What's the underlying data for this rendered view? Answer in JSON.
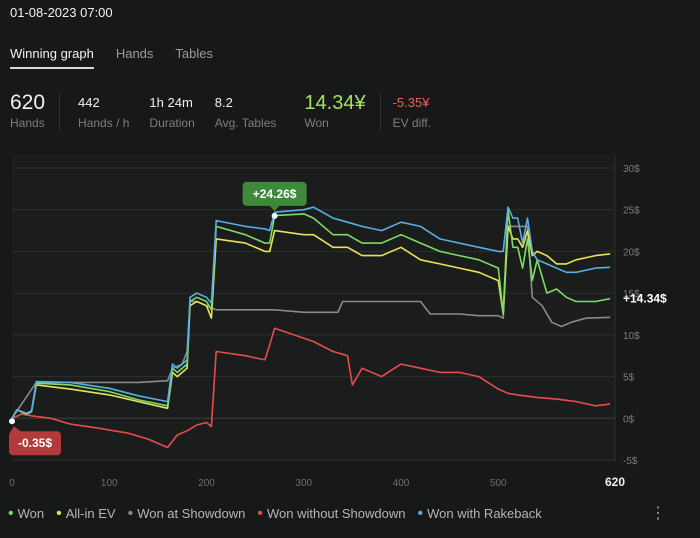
{
  "header": {
    "title": "01-08-2023 07:00"
  },
  "tabs": [
    {
      "label": "Winning graph",
      "active": true
    },
    {
      "label": "Hands"
    },
    {
      "label": "Tables"
    }
  ],
  "stats": {
    "hands": {
      "value": "620",
      "label": "Hands"
    },
    "hands_per_h": {
      "value": "442",
      "label": "Hands / h"
    },
    "duration": {
      "value": "1h 24m",
      "label": "Duration"
    },
    "avg_tables": {
      "value": "8.2",
      "label": "Avg. Tables"
    },
    "won": {
      "value": "14.34¥",
      "label": "Won"
    },
    "ev_diff": {
      "value": "-5.35¥",
      "label": "EV diff."
    }
  },
  "chart_data": {
    "type": "line",
    "xlim": [
      0,
      620
    ],
    "ylim": [
      -5,
      30
    ],
    "x_ticks": [
      "0",
      "100",
      "200",
      "300",
      "400",
      "500",
      "620"
    ],
    "y_ticks": [
      "30$",
      "25$",
      "20$",
      "15$",
      "10$",
      "5$",
      "0$",
      "-5$"
    ],
    "y_tick_values": [
      30,
      25,
      20,
      15,
      10,
      5,
      0,
      -5
    ],
    "annotations": {
      "max": {
        "label": "+24.26$",
        "x": 270,
        "y": 24.26
      },
      "min": {
        "label": "-0.35$",
        "x": 0,
        "y": -0.35
      },
      "final": {
        "label": "+14.34$"
      }
    },
    "series": [
      {
        "name": "Won",
        "color": "#7ddc63",
        "points": [
          [
            0,
            0
          ],
          [
            5,
            1
          ],
          [
            15,
            0.5
          ],
          [
            20,
            0.8
          ],
          [
            25,
            4.2
          ],
          [
            60,
            4
          ],
          [
            100,
            3.2
          ],
          [
            130,
            2.2
          ],
          [
            160,
            1.5
          ],
          [
            165,
            6
          ],
          [
            170,
            5.5
          ],
          [
            180,
            6.5
          ],
          [
            183,
            14
          ],
          [
            190,
            14.5
          ],
          [
            200,
            14
          ],
          [
            205,
            13
          ],
          [
            210,
            23
          ],
          [
            240,
            22
          ],
          [
            260,
            21
          ],
          [
            265,
            21
          ],
          [
            270,
            24.3
          ],
          [
            300,
            24.5
          ],
          [
            310,
            24
          ],
          [
            330,
            22
          ],
          [
            345,
            22
          ],
          [
            360,
            21
          ],
          [
            380,
            21
          ],
          [
            400,
            22
          ],
          [
            420,
            21
          ],
          [
            440,
            20
          ],
          [
            460,
            19.5
          ],
          [
            480,
            19
          ],
          [
            500,
            18
          ],
          [
            505,
            12.5
          ],
          [
            510,
            25
          ],
          [
            515,
            20.5
          ],
          [
            520,
            20.5
          ],
          [
            525,
            18
          ],
          [
            530,
            21.5
          ],
          [
            535,
            16.5
          ],
          [
            540,
            19
          ],
          [
            550,
            15
          ],
          [
            560,
            15.5
          ],
          [
            570,
            14.5
          ],
          [
            580,
            14
          ],
          [
            600,
            14
          ],
          [
            615,
            14.34
          ]
        ]
      },
      {
        "name": "All-in EV",
        "color": "#ebe356",
        "points": [
          [
            0,
            0
          ],
          [
            5,
            1
          ],
          [
            15,
            0.5
          ],
          [
            20,
            0.8
          ],
          [
            25,
            4
          ],
          [
            60,
            3.5
          ],
          [
            100,
            2.8
          ],
          [
            130,
            2
          ],
          [
            160,
            1.2
          ],
          [
            165,
            5.5
          ],
          [
            170,
            5
          ],
          [
            180,
            6
          ],
          [
            183,
            13.5
          ],
          [
            190,
            14
          ],
          [
            200,
            13.5
          ],
          [
            205,
            12
          ],
          [
            210,
            21.5
          ],
          [
            240,
            21
          ],
          [
            260,
            20
          ],
          [
            265,
            20
          ],
          [
            270,
            22.5
          ],
          [
            300,
            22
          ],
          [
            310,
            22
          ],
          [
            330,
            20.5
          ],
          [
            345,
            20.5
          ],
          [
            360,
            19.5
          ],
          [
            380,
            19.5
          ],
          [
            400,
            20.5
          ],
          [
            420,
            19
          ],
          [
            440,
            18.5
          ],
          [
            460,
            18
          ],
          [
            480,
            17.5
          ],
          [
            500,
            16.5
          ],
          [
            505,
            12.5
          ],
          [
            510,
            23
          ],
          [
            515,
            21.5
          ],
          [
            520,
            21.5
          ],
          [
            525,
            20.5
          ],
          [
            530,
            22.5
          ],
          [
            535,
            19.5
          ],
          [
            540,
            20
          ],
          [
            550,
            19.5
          ],
          [
            560,
            18.5
          ],
          [
            570,
            18.5
          ],
          [
            580,
            19
          ],
          [
            600,
            19.5
          ],
          [
            615,
            19.7
          ]
        ]
      },
      {
        "name": "Won at Showdown",
        "color": "#8a8a8a",
        "points": [
          [
            0,
            0
          ],
          [
            25,
            4.3
          ],
          [
            100,
            4.3
          ],
          [
            130,
            4.3
          ],
          [
            160,
            4.5
          ],
          [
            165,
            6
          ],
          [
            175,
            6.5
          ],
          [
            180,
            8
          ],
          [
            183,
            14
          ],
          [
            190,
            14
          ],
          [
            200,
            13.5
          ],
          [
            210,
            13
          ],
          [
            240,
            13
          ],
          [
            260,
            13
          ],
          [
            270,
            13
          ],
          [
            300,
            12.7
          ],
          [
            320,
            12.7
          ],
          [
            335,
            12.7
          ],
          [
            340,
            14
          ],
          [
            380,
            14
          ],
          [
            420,
            14
          ],
          [
            430,
            12.5
          ],
          [
            460,
            12.5
          ],
          [
            480,
            12.3
          ],
          [
            500,
            12.3
          ],
          [
            505,
            12
          ],
          [
            510,
            23
          ],
          [
            515,
            23
          ],
          [
            530,
            23
          ],
          [
            535,
            14.5
          ],
          [
            545,
            13.5
          ],
          [
            555,
            11.5
          ],
          [
            565,
            11
          ],
          [
            575,
            11.5
          ],
          [
            590,
            12
          ],
          [
            615,
            12.1
          ]
        ]
      },
      {
        "name": "Won without Showdown",
        "color": "#e64c4c",
        "points": [
          [
            0,
            0
          ],
          [
            10,
            0.5
          ],
          [
            20,
            0.3
          ],
          [
            40,
            0
          ],
          [
            60,
            -0.7
          ],
          [
            90,
            -1.2
          ],
          [
            120,
            -1.8
          ],
          [
            140,
            -2.5
          ],
          [
            160,
            -3.5
          ],
          [
            170,
            -2
          ],
          [
            180,
            -1.5
          ],
          [
            190,
            -0.8
          ],
          [
            200,
            -0.5
          ],
          [
            205,
            -1
          ],
          [
            210,
            8
          ],
          [
            240,
            7.5
          ],
          [
            260,
            7
          ],
          [
            265,
            8.8
          ],
          [
            270,
            10.8
          ],
          [
            290,
            10
          ],
          [
            310,
            9.2
          ],
          [
            330,
            8
          ],
          [
            345,
            7.5
          ],
          [
            350,
            4
          ],
          [
            360,
            6
          ],
          [
            380,
            5
          ],
          [
            400,
            6.5
          ],
          [
            420,
            6
          ],
          [
            440,
            5.5
          ],
          [
            460,
            5.5
          ],
          [
            480,
            5
          ],
          [
            500,
            3.5
          ],
          [
            510,
            3
          ],
          [
            520,
            2.8
          ],
          [
            540,
            2.5
          ],
          [
            560,
            2.3
          ],
          [
            580,
            2
          ],
          [
            600,
            1.5
          ],
          [
            615,
            1.7
          ]
        ]
      },
      {
        "name": "Won with Rakeback",
        "color": "#59aee8",
        "points": [
          [
            0,
            0
          ],
          [
            5,
            1
          ],
          [
            15,
            0.6
          ],
          [
            20,
            0.9
          ],
          [
            25,
            4.4
          ],
          [
            60,
            4.3
          ],
          [
            100,
            3.6
          ],
          [
            130,
            2.7
          ],
          [
            160,
            2
          ],
          [
            165,
            6.5
          ],
          [
            170,
            6
          ],
          [
            180,
            7
          ],
          [
            183,
            14.5
          ],
          [
            190,
            15
          ],
          [
            200,
            14.5
          ],
          [
            205,
            13.8
          ],
          [
            210,
            23.7
          ],
          [
            240,
            23
          ],
          [
            260,
            22.7
          ],
          [
            265,
            22.5
          ],
          [
            270,
            24.7
          ],
          [
            300,
            25
          ],
          [
            310,
            25.3
          ],
          [
            330,
            24
          ],
          [
            345,
            23.5
          ],
          [
            360,
            23
          ],
          [
            380,
            22.5
          ],
          [
            400,
            23.5
          ],
          [
            420,
            23
          ],
          [
            440,
            21.5
          ],
          [
            460,
            21
          ],
          [
            480,
            20.5
          ],
          [
            500,
            20
          ],
          [
            505,
            20
          ],
          [
            510,
            25.3
          ],
          [
            515,
            24
          ],
          [
            520,
            24
          ],
          [
            525,
            21
          ],
          [
            530,
            24
          ],
          [
            535,
            20
          ],
          [
            540,
            19
          ],
          [
            550,
            18.5
          ],
          [
            560,
            18
          ],
          [
            570,
            17.5
          ],
          [
            580,
            17.5
          ],
          [
            600,
            18
          ],
          [
            615,
            18.1
          ]
        ]
      }
    ]
  },
  "legend": [
    {
      "label": "Won",
      "color": "#7ddc63"
    },
    {
      "label": "All-in EV",
      "color": "#ebe356"
    },
    {
      "label": "Won at Showdown",
      "color": "#8a8a8a"
    },
    {
      "label": "Won without Showdown",
      "color": "#e64c4c"
    },
    {
      "label": "Won with Rakeback",
      "color": "#59aee8"
    }
  ],
  "menu_icon": "more-vertical-icon"
}
